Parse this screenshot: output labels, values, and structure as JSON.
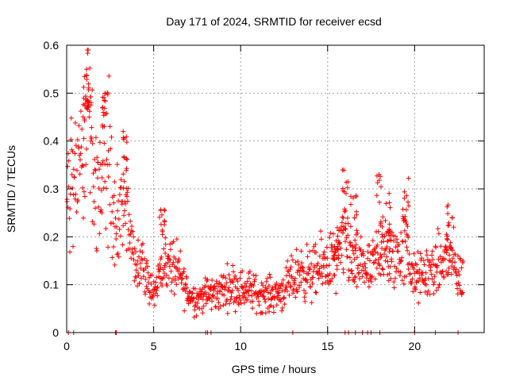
{
  "chart_data": {
    "type": "scatter",
    "title": "Day 171 of 2024, SRMTID for receiver ecsd",
    "xlabel": "GPS time / hours",
    "ylabel": "SRMTID / TECUs",
    "xlim": [
      0,
      24
    ],
    "ylim": [
      0,
      0.6
    ],
    "x_ticks": [
      0,
      5,
      10,
      15,
      20
    ],
    "x_tick_labels": [
      "0",
      "5",
      "10",
      "15",
      "20"
    ],
    "y_ticks": [
      0,
      0.1,
      0.2,
      0.3,
      0.4,
      0.5,
      0.6
    ],
    "y_tick_labels": [
      "0",
      "0.1",
      "0.2",
      "0.3",
      "0.4",
      "0.5",
      "0.6"
    ],
    "grid": true,
    "marker": "+",
    "color": "#ff0000",
    "series": [
      {
        "name": "SRMTID",
        "trend": [
          [
            0.0,
            0.28
          ],
          [
            0.3,
            0.34
          ],
          [
            0.6,
            0.3
          ],
          [
            0.9,
            0.35
          ],
          [
            1.1,
            0.42
          ],
          [
            1.3,
            0.46
          ],
          [
            1.6,
            0.34
          ],
          [
            1.9,
            0.28
          ],
          [
            2.2,
            0.4
          ],
          [
            2.5,
            0.33
          ],
          [
            2.8,
            0.22
          ],
          [
            3.1,
            0.24
          ],
          [
            3.4,
            0.27
          ],
          [
            3.7,
            0.18
          ],
          [
            4.0,
            0.14
          ],
          [
            4.4,
            0.15
          ],
          [
            4.8,
            0.1
          ],
          [
            5.2,
            0.1
          ],
          [
            5.6,
            0.15
          ],
          [
            6.0,
            0.14
          ],
          [
            6.5,
            0.12
          ],
          [
            7.0,
            0.08
          ],
          [
            7.5,
            0.07
          ],
          [
            8.0,
            0.08
          ],
          [
            8.5,
            0.08
          ],
          [
            9.0,
            0.09
          ],
          [
            9.5,
            0.1
          ],
          [
            10.0,
            0.09
          ],
          [
            10.5,
            0.09
          ],
          [
            11.0,
            0.08
          ],
          [
            11.5,
            0.08
          ],
          [
            12.0,
            0.08
          ],
          [
            12.5,
            0.09
          ],
          [
            13.0,
            0.11
          ],
          [
            13.5,
            0.13
          ],
          [
            14.0,
            0.12
          ],
          [
            14.5,
            0.13
          ],
          [
            15.0,
            0.15
          ],
          [
            15.5,
            0.14
          ],
          [
            16.0,
            0.2
          ],
          [
            16.5,
            0.13
          ],
          [
            17.0,
            0.15
          ],
          [
            17.5,
            0.12
          ],
          [
            18.0,
            0.18
          ],
          [
            18.5,
            0.15
          ],
          [
            19.0,
            0.16
          ],
          [
            19.5,
            0.18
          ],
          [
            20.0,
            0.11
          ],
          [
            20.5,
            0.12
          ],
          [
            21.0,
            0.13
          ],
          [
            21.5,
            0.14
          ],
          [
            22.0,
            0.16
          ],
          [
            22.5,
            0.12
          ],
          [
            22.8,
            0.11
          ]
        ],
        "spikes": [
          [
            1.1,
            0.55
          ],
          [
            1.3,
            0.5
          ],
          [
            2.2,
            0.51
          ],
          [
            3.4,
            0.44
          ],
          [
            16.0,
            0.34
          ],
          [
            16.5,
            0.29
          ],
          [
            18.0,
            0.35
          ],
          [
            18.5,
            0.3
          ],
          [
            19.5,
            0.33
          ],
          [
            22.0,
            0.27
          ],
          [
            15.5,
            0.22
          ],
          [
            5.5,
            0.26
          ]
        ],
        "zeros": [
          0.1,
          0.4,
          2.8,
          2.85,
          8.0,
          8.1,
          8.3,
          13.0,
          15.0,
          16.0,
          16.2,
          16.6,
          17.0,
          17.3,
          17.5,
          18.0,
          20.0,
          21.2,
          22.5
        ]
      }
    ]
  }
}
